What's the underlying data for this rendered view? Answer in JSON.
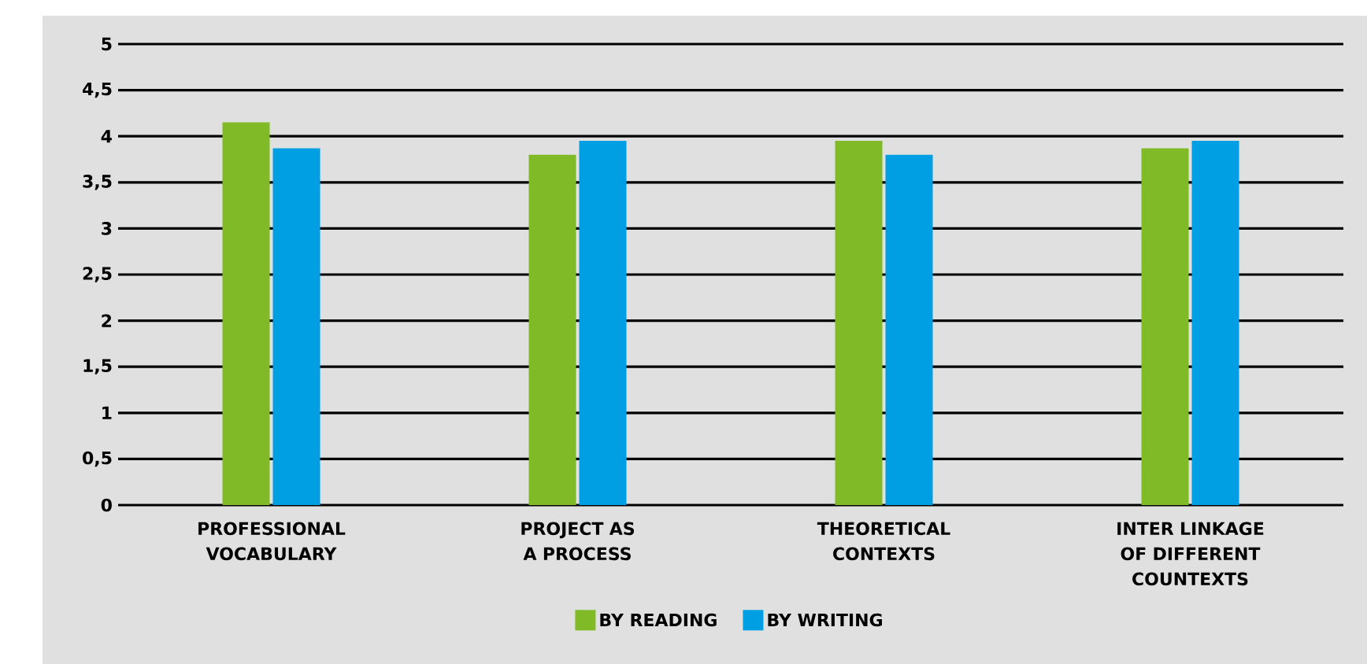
{
  "chart_data": {
    "type": "bar",
    "categories": [
      "PROFESSIONAL VOCABULARY",
      "PROJECT AS A PROCESS",
      "THEORETICAL CONTEXTS",
      "INTER LINKAGE OF DIFFERENT COUNTEXTS"
    ],
    "series": [
      {
        "name": "BY READING",
        "color": "#80ba27",
        "values": [
          4.15,
          3.8,
          3.95,
          3.87
        ]
      },
      {
        "name": "BY WRITING",
        "color": "#009fe3",
        "values": [
          3.87,
          3.95,
          3.8,
          3.95
        ]
      }
    ],
    "ylim": [
      0,
      5
    ],
    "yticks": [
      0,
      {
        "value": 0.5,
        "label": "0,5"
      },
      1,
      {
        "value": 1.5,
        "label": "1,5"
      },
      2,
      {
        "value": 2.5,
        "label": "2,5"
      },
      3,
      {
        "value": 3.5,
        "label": "3,5"
      },
      4,
      {
        "value": 4.5,
        "label": "4,5"
      },
      5
    ],
    "grid": "y",
    "legend": "bottom"
  }
}
